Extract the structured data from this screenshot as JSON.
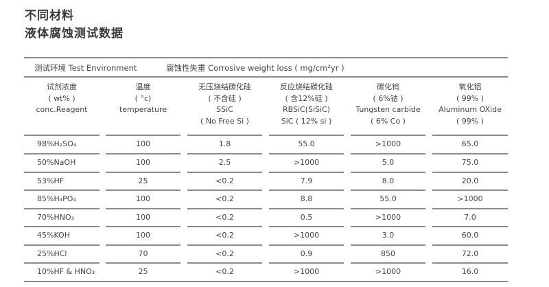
{
  "title_line1": "不同材料",
  "title_line2": "液体腐蚀测试数据",
  "env_label": "测试环境 Test Environment",
  "loss_label": "腐蚀性失重 Corrosive weight loss ( mg/cm²yr )",
  "columns": [
    {
      "lines": [
        "试剂浓度",
        "( wt% )",
        "conc.Reagent",
        ""
      ]
    },
    {
      "lines": [
        "温度",
        "( °c)",
        "temperature",
        ""
      ]
    },
    {
      "lines": [
        "无压烧结碳化硅",
        "( 不含硅 )",
        "SSiC",
        "( No  Free Si )"
      ]
    },
    {
      "lines": [
        "反应烧结碳化硅",
        "( 含12%硅 )",
        "RBSiC(SiSiC)",
        "SiC ( 12% si )"
      ]
    },
    {
      "lines": [
        "碳化钨",
        "( 6%钴 )",
        "Tungsten carbide",
        "( 6% Co )"
      ]
    },
    {
      "lines": [
        "氧化铝",
        "( 99% )",
        "Aluminum OXide",
        "( 99%  )"
      ]
    }
  ],
  "rows": [
    [
      "98%H₂SO₄",
      "100",
      "1.8",
      "55.0",
      ">1000",
      "65.0"
    ],
    [
      "50%NaOH",
      "100",
      "2.5",
      ">1000",
      "5.0",
      "75.0"
    ],
    [
      "53%HF",
      "25",
      "<0.2",
      "7.9",
      "8.0",
      "20.0"
    ],
    [
      "85%H₃PO₄",
      "100",
      "<0.2",
      "8.8",
      "55.0",
      ">1000"
    ],
    [
      "70%HNO₃",
      "100",
      "<0.2",
      "0.5",
      ">1000",
      "7.0"
    ],
    [
      "45%KOH",
      "100",
      "<0.2",
      ">1000",
      "3.0",
      "60.0"
    ],
    [
      "25%HCl",
      "70",
      "<0.2",
      "0.9",
      "850",
      "72.0"
    ],
    [
      "10%HF & HNO₃",
      "25",
      "<0.2",
      ">1000",
      ">1000",
      "16.0"
    ]
  ]
}
